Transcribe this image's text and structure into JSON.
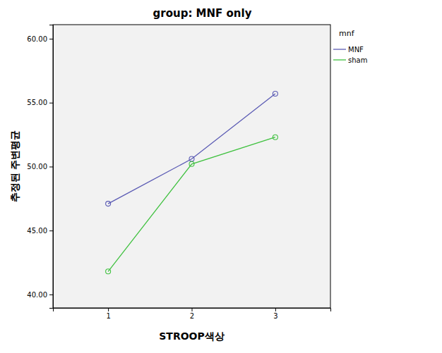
{
  "chart_data": {
    "type": "line",
    "title": "group: MNF only",
    "x_label": "STROOP색상",
    "y_label": "추정된 주변평균",
    "legend_title": "mnf",
    "legend": "right",
    "grid": false,
    "marker": "circle",
    "categories": [
      "1",
      "2",
      "3"
    ],
    "series": [
      {
        "name": "MNF",
        "color": "#5b5bb4",
        "values": [
          47.1,
          50.6,
          55.7
        ]
      },
      {
        "name": "sham",
        "color": "#3fc13f",
        "values": [
          41.8,
          50.2,
          52.3
        ]
      }
    ],
    "ylim": [
      38.95,
      61.1
    ],
    "yticks": [
      {
        "value": 40,
        "label": "40.00"
      },
      {
        "value": 45,
        "label": "45.00"
      },
      {
        "value": 50,
        "label": "50.00"
      },
      {
        "value": 55,
        "label": "55.00"
      },
      {
        "value": 60,
        "label": "60.00"
      }
    ]
  }
}
